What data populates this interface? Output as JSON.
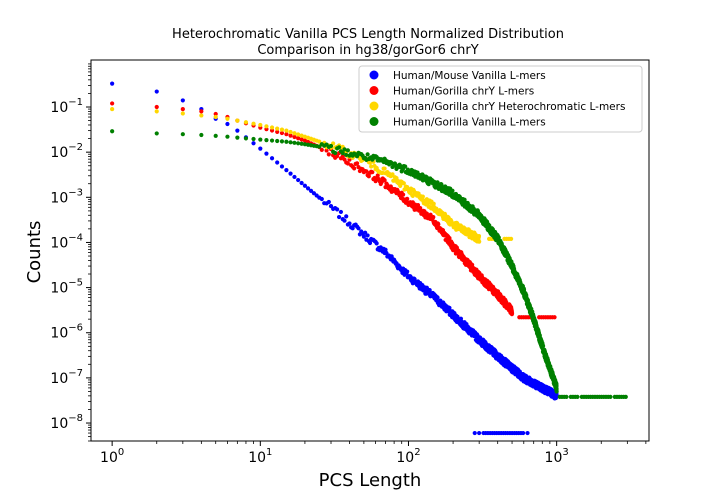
{
  "chart_data": {
    "type": "scatter",
    "title": "Heterochromatic Vanilla PCS Length Normalized Distribution",
    "subtitle": "Comparison in hg38/gorGor6 chrY",
    "xlabel": "PCS Length",
    "ylabel": "Counts",
    "xscale": "log",
    "yscale": "log",
    "xlim": [
      0.72,
      4200
    ],
    "ylim": [
      4e-09,
      1.1
    ],
    "x_ticks": [
      {
        "base": "10",
        "exp": "0",
        "value": 1
      },
      {
        "base": "10",
        "exp": "1",
        "value": 10
      },
      {
        "base": "10",
        "exp": "2",
        "value": 100
      },
      {
        "base": "10",
        "exp": "3",
        "value": 1000
      }
    ],
    "y_ticks": [
      {
        "base": "10",
        "exp": "−8",
        "value": 1e-08
      },
      {
        "base": "10",
        "exp": "−7",
        "value": 1e-07
      },
      {
        "base": "10",
        "exp": "−6",
        "value": 1e-06
      },
      {
        "base": "10",
        "exp": "−5",
        "value": 1e-05
      },
      {
        "base": "10",
        "exp": "−4",
        "value": 0.0001
      },
      {
        "base": "10",
        "exp": "−3",
        "value": 0.001
      },
      {
        "base": "10",
        "exp": "−2",
        "value": 0.01
      },
      {
        "base": "10",
        "exp": "−1",
        "value": 0.1
      }
    ],
    "grid": false,
    "legend_position": "top-right",
    "series": [
      {
        "name": "Human/Mouse Vanilla L-mers",
        "color": "#0000ff",
        "points": [
          [
            1,
            0.33
          ],
          [
            2,
            0.22
          ],
          [
            3,
            0.14
          ],
          [
            4,
            0.09
          ],
          [
            5,
            0.055
          ],
          [
            6,
            0.042
          ],
          [
            7,
            0.03
          ],
          [
            10,
            0.012
          ],
          [
            15,
            0.004
          ],
          [
            20,
            0.0018
          ],
          [
            30,
            0.0006
          ],
          [
            50,
            0.00015
          ],
          [
            70,
            6e-05
          ],
          [
            100,
            1.8e-05
          ],
          [
            150,
            6e-06
          ],
          [
            200,
            2.5e-06
          ],
          [
            300,
            7e-07
          ],
          [
            400,
            3e-07
          ],
          [
            600,
            1e-07
          ],
          [
            1000,
            4e-08
          ]
        ],
        "floor": {
          "value": 6e-09,
          "x_start": 280,
          "x_end": 640
        }
      },
      {
        "name": "Human/Gorilla chrY L-mers",
        "color": "#ff0000",
        "points": [
          [
            1,
            0.12
          ],
          [
            2,
            0.1
          ],
          [
            3,
            0.09
          ],
          [
            4,
            0.08
          ],
          [
            5,
            0.07
          ],
          [
            6,
            0.06
          ],
          [
            7,
            0.05
          ],
          [
            10,
            0.035
          ],
          [
            15,
            0.025
          ],
          [
            20,
            0.018
          ],
          [
            30,
            0.01
          ],
          [
            50,
            0.004
          ],
          [
            70,
            0.002
          ],
          [
            100,
            0.0008
          ],
          [
            150,
            0.0003
          ],
          [
            200,
            8e-05
          ],
          [
            300,
            1.8e-05
          ],
          [
            400,
            7e-06
          ],
          [
            500,
            3e-06
          ]
        ],
        "floor": {
          "value": 2.2e-06,
          "x_start": 560,
          "x_end": 1020
        }
      },
      {
        "name": "Human/Gorilla chrY Heterochromatic L-mers",
        "color": "#ffd700",
        "points": [
          [
            1,
            0.09
          ],
          [
            2,
            0.08
          ],
          [
            3,
            0.072
          ],
          [
            4,
            0.065
          ],
          [
            5,
            0.06
          ],
          [
            6,
            0.055
          ],
          [
            7,
            0.05
          ],
          [
            10,
            0.04
          ],
          [
            15,
            0.03
          ],
          [
            20,
            0.022
          ],
          [
            30,
            0.014
          ],
          [
            50,
            0.007
          ],
          [
            70,
            0.0035
          ],
          [
            100,
            0.0015
          ],
          [
            150,
            0.0006
          ],
          [
            200,
            0.00025
          ],
          [
            300,
            0.00012
          ]
        ],
        "floor": {
          "value": 0.00012,
          "x_start": 350,
          "x_end": 500
        }
      },
      {
        "name": "Human/Gorilla Vanilla L-mers",
        "color": "#008000",
        "points": [
          [
            1,
            0.029
          ],
          [
            2,
            0.026
          ],
          [
            3,
            0.025
          ],
          [
            4,
            0.024
          ],
          [
            5,
            0.023
          ],
          [
            6,
            0.022
          ],
          [
            7,
            0.021
          ],
          [
            10,
            0.019
          ],
          [
            15,
            0.017
          ],
          [
            20,
            0.015
          ],
          [
            30,
            0.012
          ],
          [
            50,
            0.008
          ],
          [
            70,
            0.006
          ],
          [
            100,
            0.004
          ],
          [
            150,
            0.002
          ],
          [
            200,
            0.0012
          ],
          [
            300,
            0.0004
          ],
          [
            400,
            0.00012
          ],
          [
            500,
            3e-05
          ],
          [
            600,
            8e-06
          ],
          [
            700,
            2e-06
          ],
          [
            800,
            5e-07
          ],
          [
            900,
            1.6e-07
          ],
          [
            1000,
            6e-08
          ]
        ],
        "floor": {
          "value": 3.8e-08,
          "x_start": 1050,
          "x_end": 3100
        }
      }
    ]
  }
}
